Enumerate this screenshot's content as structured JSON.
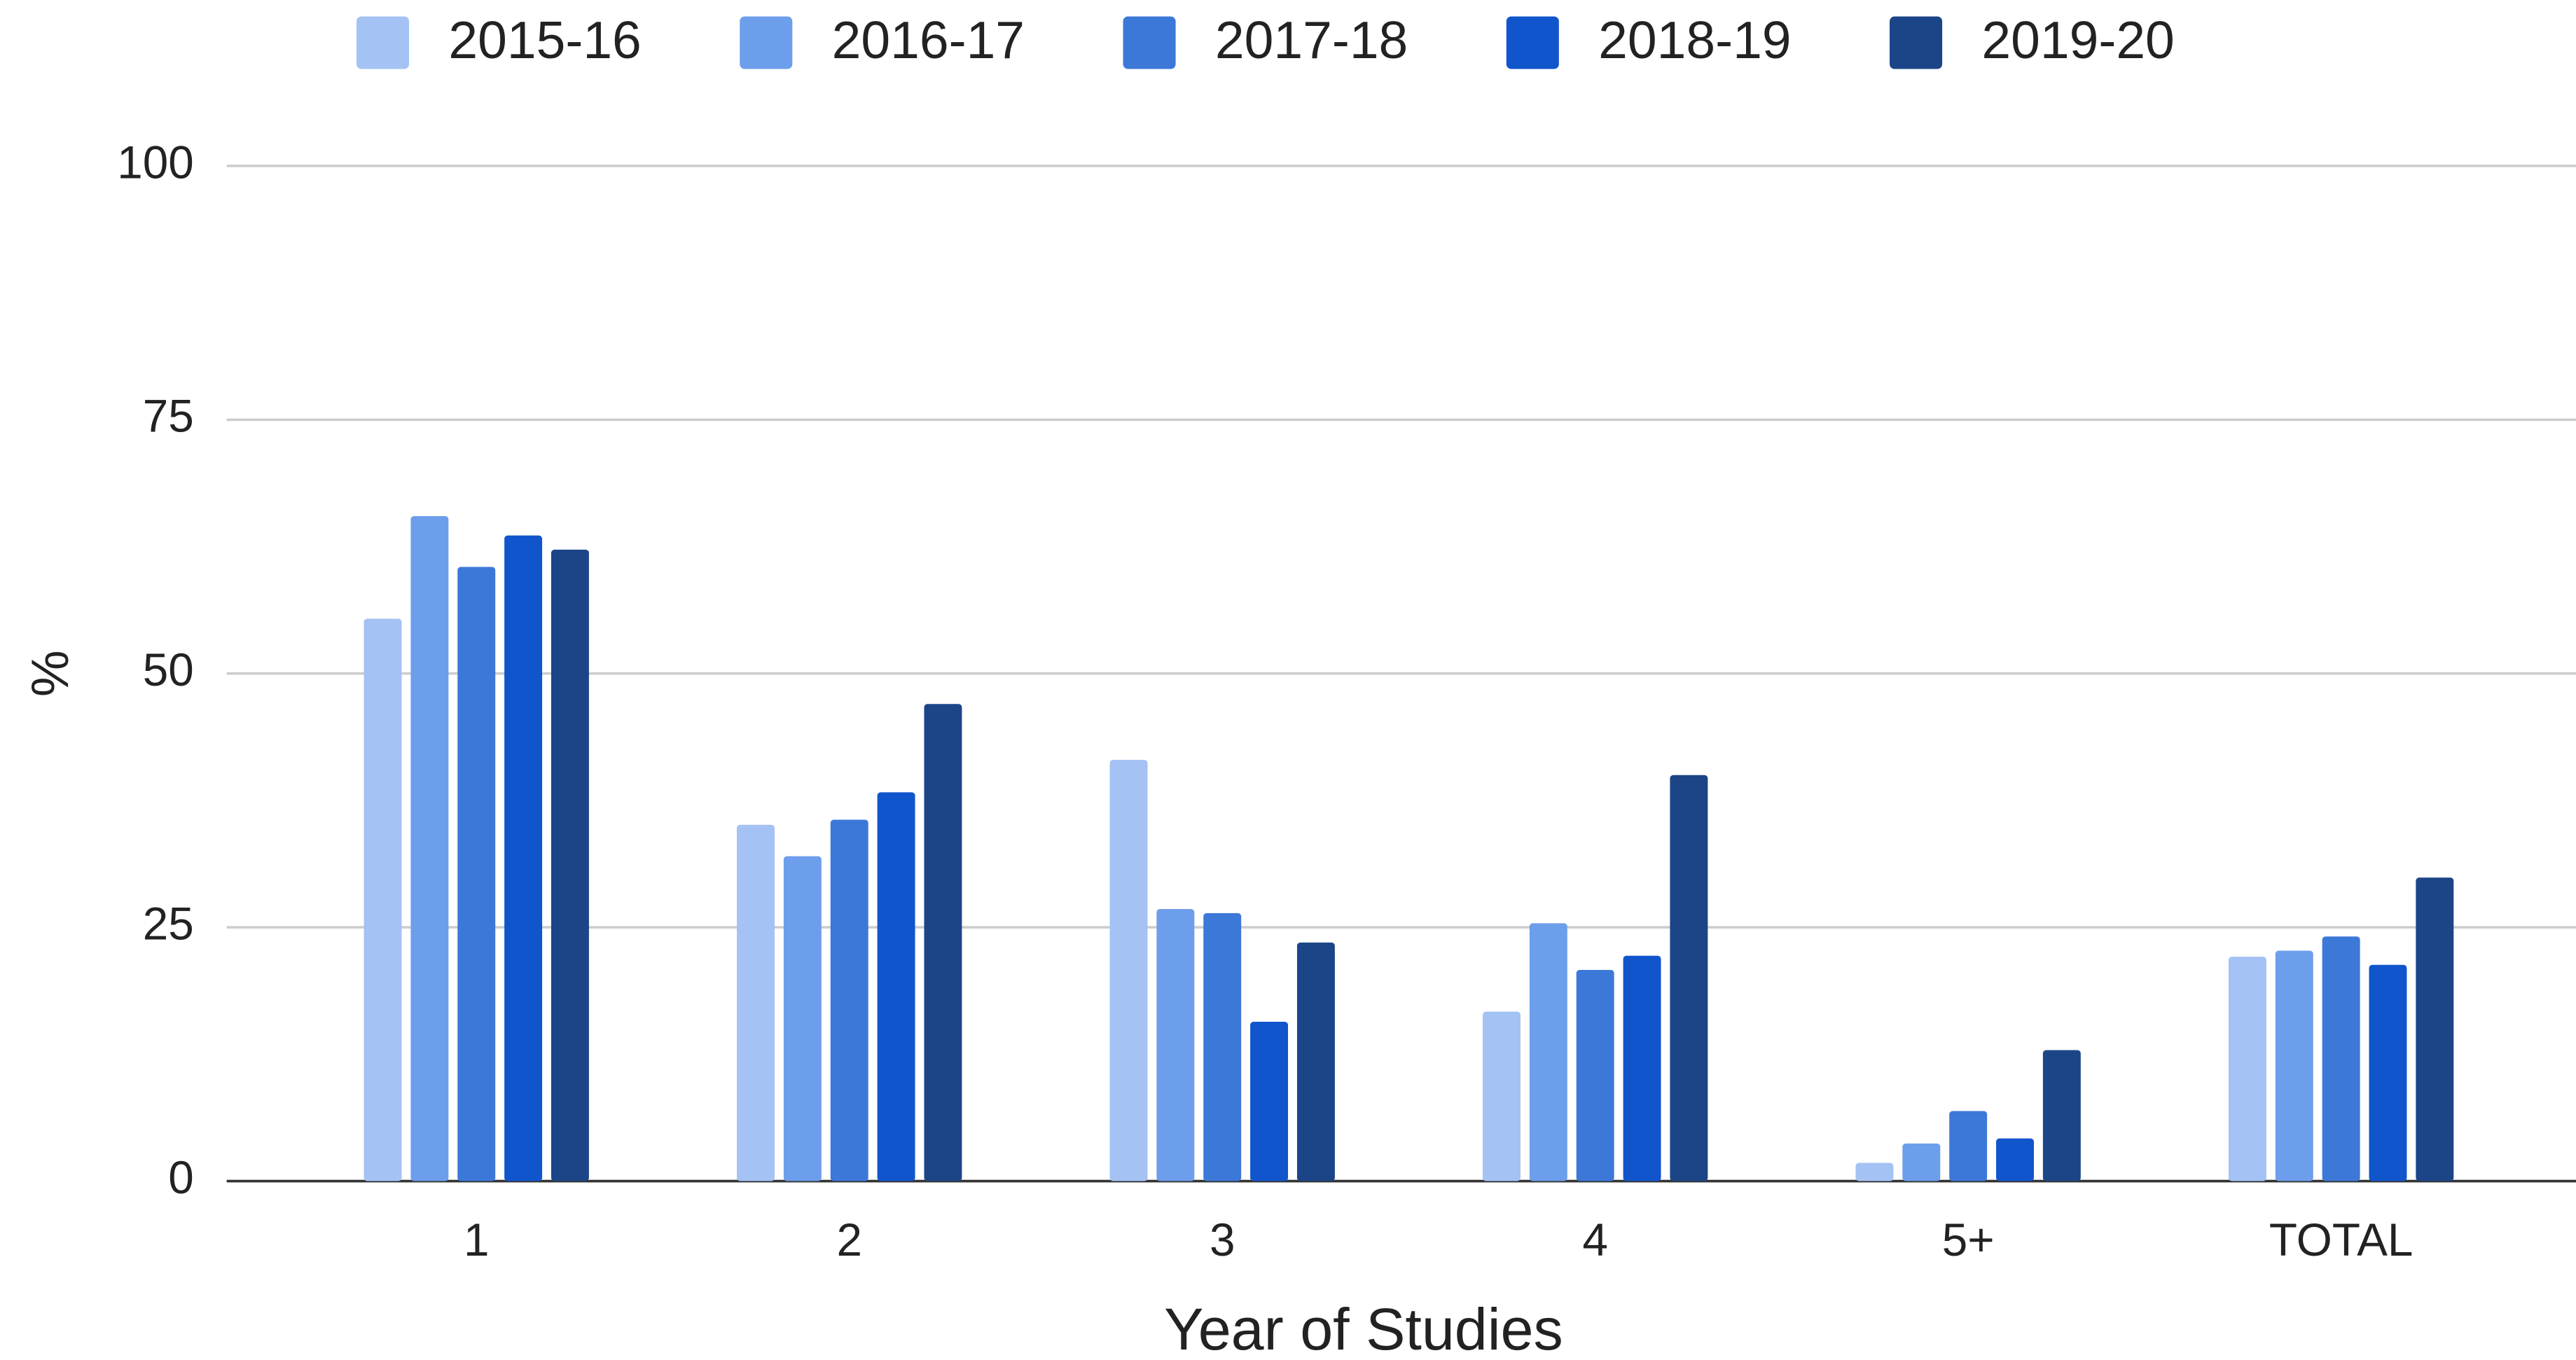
{
  "chart_data": {
    "type": "bar",
    "categories": [
      "1",
      "2",
      "3",
      "4",
      "5+",
      "TOTAL"
    ],
    "series": [
      {
        "name": "2015-16",
        "color": "#a4c2f4",
        "values": [
          55.4,
          35.1,
          41.5,
          16.7,
          1.8,
          22.1
        ]
      },
      {
        "name": "2016-17",
        "color": "#6d9eeb",
        "values": [
          65.5,
          32.0,
          26.8,
          25.4,
          3.7,
          22.7
        ]
      },
      {
        "name": "2017-18",
        "color": "#3c78d8",
        "values": [
          60.5,
          35.6,
          26.4,
          20.8,
          6.9,
          24.1
        ]
      },
      {
        "name": "2018-19",
        "color": "#1155cc",
        "values": [
          63.6,
          38.3,
          15.7,
          22.2,
          4.2,
          21.3
        ]
      },
      {
        "name": "2019-20",
        "color": "#1c4587",
        "values": [
          62.2,
          47.0,
          23.5,
          40.0,
          12.9,
          29.9
        ]
      }
    ],
    "xlabel": "Year of Studies",
    "ylabel": "%",
    "ylim": [
      0,
      100
    ],
    "yticks": [
      0,
      25,
      50,
      75,
      100
    ],
    "grid": true,
    "legend": "top"
  }
}
